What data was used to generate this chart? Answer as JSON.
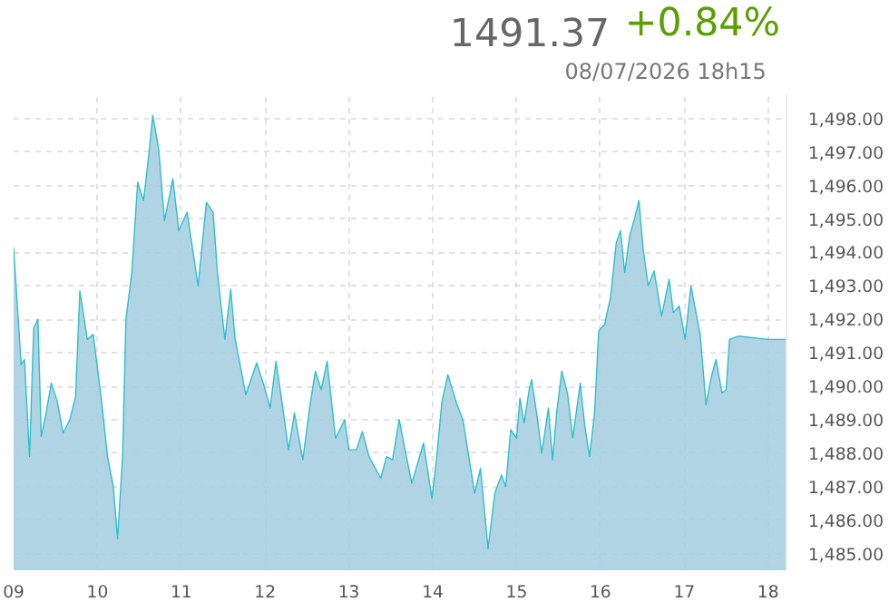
{
  "chart_data": {
    "type": "area",
    "title": "1491.37",
    "subtitle": "08/07/2026   18h15",
    "annotations": [
      "+0.84%"
    ],
    "x": [
      9.0,
      9.09,
      9.13,
      9.19,
      9.24,
      9.29,
      9.33,
      9.38,
      9.45,
      9.52,
      9.59,
      9.67,
      9.74,
      9.79,
      9.88,
      9.95,
      10.05,
      10.12,
      10.19,
      10.24,
      10.3,
      10.34,
      10.41,
      10.48,
      10.55,
      10.61,
      10.66,
      10.73,
      10.8,
      10.9,
      10.97,
      11.07,
      11.13,
      11.2,
      11.3,
      11.38,
      11.43,
      11.52,
      11.59,
      11.64,
      11.77,
      11.9,
      11.99,
      12.06,
      12.13,
      12.2,
      12.28,
      12.35,
      12.45,
      12.53,
      12.6,
      12.67,
      12.74,
      12.84,
      12.95,
      13.0,
      13.09,
      13.16,
      13.24,
      13.38,
      13.45,
      13.52,
      13.6,
      13.67,
      13.75,
      13.89,
      13.99,
      14.04,
      14.11,
      14.18,
      14.29,
      14.36,
      14.43,
      14.5,
      14.57,
      14.66,
      14.74,
      14.82,
      14.87,
      14.93,
      15.0,
      15.04,
      15.09,
      15.15,
      15.18,
      15.25,
      15.3,
      15.38,
      15.43,
      15.48,
      15.54,
      15.61,
      15.67,
      15.76,
      15.81,
      15.87,
      15.93,
      15.98,
      16.05,
      16.12,
      16.19,
      16.24,
      16.29,
      16.35,
      16.4,
      16.46,
      16.51,
      16.57,
      16.64,
      16.73,
      16.82,
      16.87,
      16.94,
      17.01,
      17.08,
      17.19,
      17.26,
      17.32,
      17.38,
      17.45,
      17.5,
      17.54,
      17.65,
      18.01,
      18.21
    ],
    "series": [
      {
        "color": "#2ebfcc",
        "values": [
          1494.15,
          1490.65,
          1490.8,
          1487.9,
          1491.75,
          1492.0,
          1488.5,
          1489.1,
          1490.1,
          1489.55,
          1488.6,
          1489.0,
          1489.7,
          1492.85,
          1491.4,
          1491.55,
          1489.55,
          1487.9,
          1487.0,
          1485.45,
          1487.9,
          1492.0,
          1493.4,
          1496.1,
          1495.55,
          1496.85,
          1498.1,
          1497.1,
          1494.95,
          1496.2,
          1494.65,
          1495.2,
          1494.2,
          1493.0,
          1495.5,
          1495.2,
          1493.45,
          1491.4,
          1492.9,
          1491.45,
          1489.75,
          1490.7,
          1490.0,
          1489.35,
          1490.75,
          1489.55,
          1488.1,
          1489.2,
          1487.8,
          1489.35,
          1490.45,
          1489.9,
          1490.75,
          1488.45,
          1489.0,
          1488.1,
          1488.1,
          1488.65,
          1487.9,
          1487.25,
          1487.9,
          1487.8,
          1489.0,
          1488.1,
          1487.1,
          1488.3,
          1486.65,
          1487.7,
          1489.55,
          1490.35,
          1489.45,
          1489.0,
          1487.9,
          1486.8,
          1487.55,
          1485.15,
          1486.8,
          1487.35,
          1487.0,
          1488.7,
          1488.45,
          1489.65,
          1488.9,
          1489.9,
          1490.2,
          1489.0,
          1488.0,
          1489.35,
          1487.8,
          1489.25,
          1490.45,
          1489.75,
          1488.45,
          1490.1,
          1488.9,
          1487.9,
          1489.2,
          1491.65,
          1491.85,
          1492.65,
          1494.3,
          1494.65,
          1493.4,
          1494.5,
          1494.95,
          1495.55,
          1494.1,
          1493.0,
          1493.45,
          1492.1,
          1493.2,
          1492.2,
          1492.4,
          1491.4,
          1493.0,
          1491.55,
          1489.45,
          1490.25,
          1490.8,
          1489.8,
          1489.9,
          1491.4,
          1491.5,
          1491.4,
          1491.4
        ]
      }
    ],
    "xlim": [
      9,
      18.22
    ],
    "ylim": [
      1484.5,
      1498.7
    ],
    "xticks": [
      {
        "value": 9,
        "label": "09"
      },
      10,
      11,
      12,
      13,
      14,
      15,
      16,
      17,
      18
    ],
    "yticks": [
      {
        "value": 1485,
        "label": "1,485.00"
      },
      {
        "value": 1486,
        "label": "1,486.00"
      },
      {
        "value": 1487,
        "label": "1,487.00"
      },
      {
        "value": 1488,
        "label": "1,488.00"
      },
      {
        "value": 1489,
        "label": "1,489.00"
      },
      {
        "value": 1490,
        "label": "1,490.00"
      },
      {
        "value": 1491,
        "label": "1,491.00"
      },
      {
        "value": 1492,
        "label": "1,492.00"
      },
      {
        "value": 1493,
        "label": "1,493.00"
      },
      {
        "value": 1494,
        "label": "1,494.00"
      },
      {
        "value": 1495,
        "label": "1,495.00"
      },
      {
        "value": 1496,
        "label": "1,496.00"
      },
      {
        "value": 1497,
        "label": "1,497.00"
      },
      {
        "value": 1498,
        "label": "1,498.00"
      }
    ],
    "grid": true
  }
}
